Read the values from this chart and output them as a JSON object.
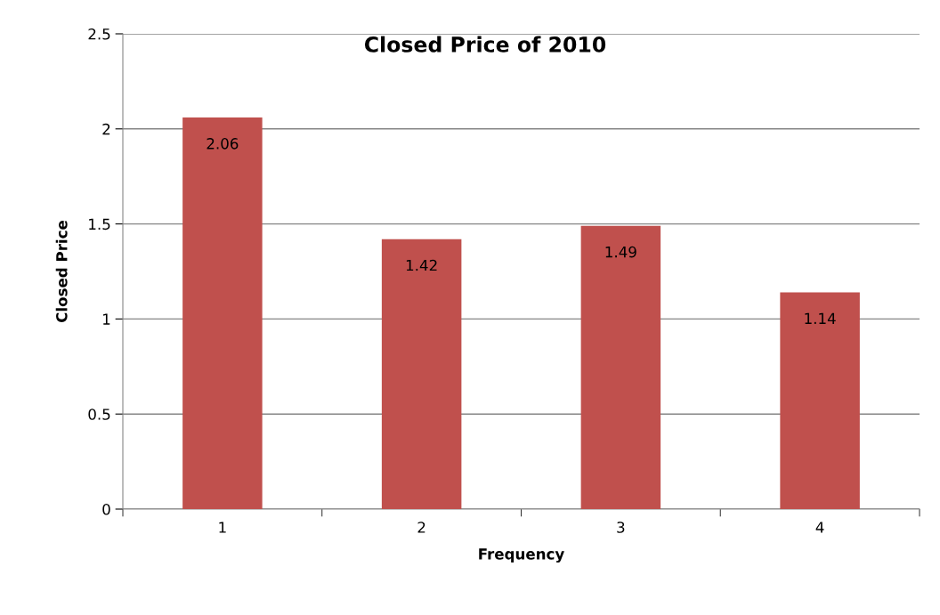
{
  "chart_data": {
    "type": "bar",
    "title": "Closed Price of 2010",
    "xlabel": "Frequency",
    "ylabel": "Closed Price",
    "categories": [
      "1",
      "2",
      "3",
      "4"
    ],
    "series": [
      {
        "color": "#c0504d",
        "values": [
          2.06,
          1.42,
          1.49,
          1.14
        ]
      }
    ],
    "ylim": [
      0,
      2.5
    ],
    "yticks": [
      0,
      0.5,
      1,
      1.5,
      2,
      2.5
    ],
    "grid": "y",
    "data_labels": true,
    "legend": false
  }
}
